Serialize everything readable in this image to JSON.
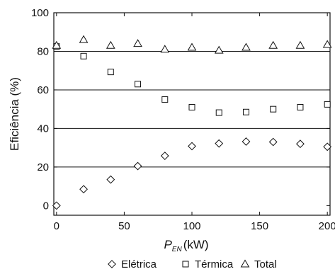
{
  "chart_data": {
    "type": "scatter",
    "title": "",
    "xlabel": {
      "main": "P",
      "sub": "EN",
      "unit": "(kW)"
    },
    "ylabel": "Eficiência (%)",
    "xlim": [
      -2,
      202
    ],
    "ylim": [
      -5,
      100
    ],
    "xticks": [
      0,
      50,
      100,
      150,
      200
    ],
    "yticks": [
      0,
      20,
      40,
      60,
      80,
      100
    ],
    "gridlines_y": [
      20,
      40,
      60,
      80
    ],
    "grid": "horizontal",
    "legend_position": "bottom",
    "x": [
      0,
      20,
      40,
      60,
      80,
      100,
      120,
      140,
      160,
      180,
      200
    ],
    "series": [
      {
        "name": "Elétrica",
        "marker": "diamond",
        "values": [
          0,
          8.5,
          13.5,
          20.5,
          25.8,
          30.8,
          32.2,
          33.2,
          33.0,
          32.0,
          30.5
        ]
      },
      {
        "name": "Térmica",
        "marker": "square",
        "values": [
          82.5,
          77.5,
          69.3,
          63.0,
          55.0,
          51.0,
          48.2,
          48.5,
          50.0,
          51.0,
          52.5
        ]
      },
      {
        "name": "Total",
        "marker": "triangle",
        "values": [
          83.0,
          86.0,
          83.0,
          84.0,
          81.0,
          82.0,
          80.5,
          82.0,
          83.0,
          83.0,
          83.5
        ]
      }
    ]
  }
}
